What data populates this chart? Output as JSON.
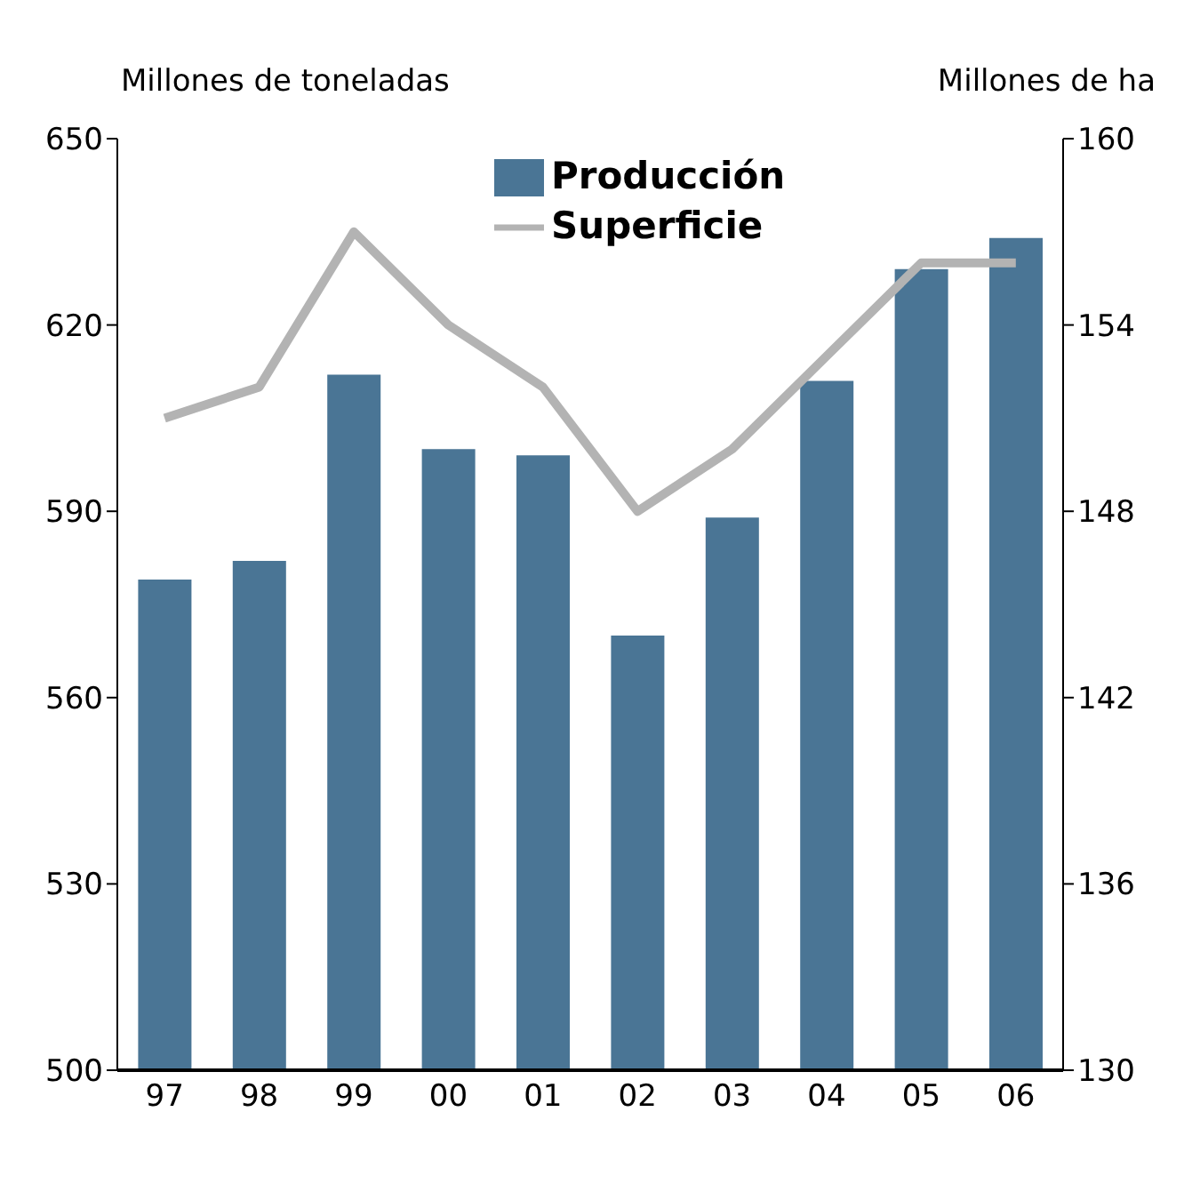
{
  "chart_data": {
    "type": "bar",
    "ylabel": "Millones de toneladas",
    "y2label": "Millones de ha",
    "categories": [
      "97",
      "98",
      "99",
      "00",
      "01",
      "02",
      "03",
      "04",
      "05",
      "06"
    ],
    "series": [
      {
        "name": "Producción",
        "color": "#4a7595",
        "values": [
          579,
          582,
          612,
          600,
          599,
          570,
          589,
          611,
          629,
          634
        ]
      },
      {
        "name": "Superficie",
        "type": "line",
        "axis": "y2",
        "color": "#b3b3b3",
        "values": [
          151,
          152,
          157,
          154,
          152,
          148,
          150,
          153,
          156,
          156
        ]
      }
    ],
    "ylim": [
      500,
      650
    ],
    "yticks": [
      500,
      530,
      560,
      590,
      620,
      650
    ],
    "y2lim": [
      130,
      160
    ],
    "y2ticks": [
      130,
      136,
      142,
      148,
      154,
      160
    ],
    "grid": false,
    "legend": "top",
    "marker": "none",
    "line_style": "solid"
  }
}
